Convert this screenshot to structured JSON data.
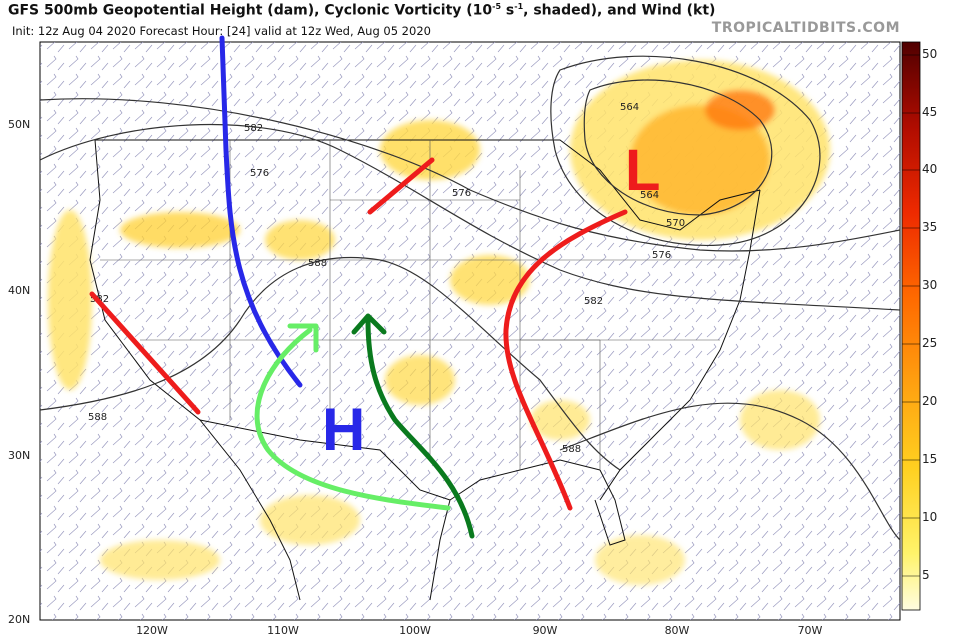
{
  "header": {
    "title_main": "GFS 500mb Geopotential Height (dam), Cyclonic Vorticity (10",
    "title_exp": "-5",
    "title_unit": " s",
    "title_exp2": "-1",
    "title_rest": ", shaded), and Wind (kt)",
    "subtitle": "Init: 12z Aug 04 2020   Forecast Hour: [24]   valid at 12z Wed, Aug 05 2020",
    "brand": "TROPICALTIDBITS.COM"
  },
  "axes": {
    "lat_labels": [
      "50N",
      "40N",
      "30N",
      "20N"
    ],
    "lon_labels": [
      "120W",
      "110W",
      "100W",
      "90W",
      "80W",
      "70W"
    ]
  },
  "colorbar": {
    "labels": [
      "50",
      "45",
      "40",
      "35",
      "30",
      "25",
      "20",
      "15",
      "10",
      "5"
    ],
    "colors": [
      "#fff9b0",
      "#ffe84a",
      "#ffc820",
      "#ffa010",
      "#ff7a00",
      "#ff4a00",
      "#e62000",
      "#c01000",
      "#900800",
      "#5a0000"
    ]
  },
  "contours": {
    "labels": [
      "582",
      "576",
      "588",
      "564",
      "564",
      "570",
      "576",
      "582",
      "588",
      "588",
      "582",
      "576"
    ]
  },
  "annotations": {
    "high_label": "H",
    "low_label": "L",
    "colors": {
      "trough": "#2828e8",
      "ridge": "#ee1c1c",
      "flow_light": "#66ee66",
      "flow_dark": "#0a7a1e"
    }
  }
}
